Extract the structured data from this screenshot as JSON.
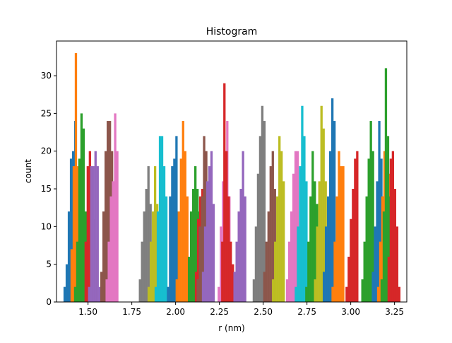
{
  "chart_data": {
    "type": "bar",
    "title": "Histogram",
    "xlabel": "r (nm)",
    "ylabel": "count",
    "xlim": [
      1.32,
      3.32
    ],
    "ylim": [
      0,
      34.6
    ],
    "xticks": [
      1.5,
      1.75,
      2.0,
      2.25,
      2.5,
      2.75,
      3.0,
      3.25
    ],
    "xtick_labels": [
      "1.50",
      "1.75",
      "2.00",
      "2.25",
      "2.50",
      "2.75",
      "3.00",
      "3.25"
    ],
    "yticks": [
      0,
      5,
      10,
      15,
      20,
      25,
      30
    ],
    "ytick_labels": [
      "0",
      "5",
      "10",
      "15",
      "20",
      "25",
      "30"
    ],
    "grid": false,
    "legend": "none",
    "series": [
      {
        "color": "#1f77b4",
        "start": 1.36,
        "width": 0.0121,
        "counts": [
          2,
          5,
          12,
          19,
          20,
          24
        ]
      },
      {
        "color": "#ff7f0e",
        "start": 1.4,
        "width": 0.0121,
        "counts": [
          7,
          18,
          33,
          18,
          13
        ]
      },
      {
        "color": "#2ca02c",
        "start": 1.42,
        "width": 0.0121,
        "counts": [
          2,
          8,
          19,
          25,
          23,
          12
        ]
      },
      {
        "color": "#d62728",
        "start": 1.48,
        "width": 0.0121,
        "counts": [
          8,
          18,
          20,
          18,
          11,
          7
        ]
      },
      {
        "color": "#9467bd",
        "start": 1.5,
        "width": 0.0121,
        "counts": [
          2,
          18,
          18,
          20,
          18,
          2
        ]
      },
      {
        "color": "#8c564b",
        "start": 1.57,
        "width": 0.0121,
        "counts": [
          4,
          12,
          20,
          24,
          24,
          20
        ]
      },
      {
        "color": "#e377c2",
        "start": 1.6,
        "width": 0.0121,
        "counts": [
          3,
          8,
          14,
          16,
          25,
          20
        ]
      },
      {
        "color": "#7f7f7f",
        "start": 1.79,
        "width": 0.0121,
        "counts": [
          3,
          8,
          12,
          15,
          18,
          13
        ]
      },
      {
        "color": "#bcbd22",
        "start": 1.84,
        "width": 0.0121,
        "counts": [
          2,
          8,
          12,
          18,
          13,
          8
        ]
      },
      {
        "color": "#17becf",
        "start": 1.88,
        "width": 0.0121,
        "counts": [
          2,
          12,
          22,
          22,
          18,
          14
        ]
      },
      {
        "color": "#1f77b4",
        "start": 1.95,
        "width": 0.0121,
        "counts": [
          2,
          14,
          18,
          19,
          22,
          12
        ]
      },
      {
        "color": "#ff7f0e",
        "start": 2.0,
        "width": 0.0121,
        "counts": [
          3,
          12,
          19,
          24,
          20,
          14
        ]
      },
      {
        "color": "#2ca02c",
        "start": 2.07,
        "width": 0.0121,
        "counts": [
          6,
          12,
          15,
          18,
          15,
          12
        ]
      },
      {
        "color": "#d62728",
        "start": 2.11,
        "width": 0.0121,
        "counts": [
          4,
          11,
          14,
          15,
          10,
          8
        ]
      },
      {
        "color": "#8c564b",
        "start": 2.12,
        "width": 0.0121,
        "counts": [
          3,
          10,
          14,
          22,
          20,
          12
        ]
      },
      {
        "color": "#9467bd",
        "start": 2.15,
        "width": 0.0121,
        "counts": [
          4,
          10,
          16,
          18,
          20,
          13
        ]
      },
      {
        "color": "#e377c2",
        "start": 2.24,
        "width": 0.0121,
        "counts": [
          2,
          10,
          16,
          20,
          24,
          14
        ]
      },
      {
        "color": "#d62728",
        "start": 2.26,
        "width": 0.0121,
        "counts": [
          8,
          29,
          20,
          14,
          8,
          5
        ]
      },
      {
        "color": "#9467bd",
        "start": 2.33,
        "width": 0.0121,
        "counts": [
          4,
          8,
          12,
          15,
          20,
          14
        ]
      },
      {
        "color": "#7f7f7f",
        "start": 2.44,
        "width": 0.0121,
        "counts": [
          3,
          10,
          17,
          22,
          26,
          24
        ]
      },
      {
        "color": "#8c564b",
        "start": 2.5,
        "width": 0.0121,
        "counts": [
          4,
          8,
          12,
          18,
          20,
          15
        ]
      },
      {
        "color": "#bcbd22",
        "start": 2.55,
        "width": 0.0121,
        "counts": [
          3,
          8,
          14,
          22,
          20,
          16
        ]
      },
      {
        "color": "#e377c2",
        "start": 2.63,
        "width": 0.0121,
        "counts": [
          3,
          8,
          12,
          17,
          20,
          20
        ]
      },
      {
        "color": "#17becf",
        "start": 2.68,
        "width": 0.0121,
        "counts": [
          2,
          10,
          18,
          26,
          22,
          16
        ]
      },
      {
        "color": "#2ca02c",
        "start": 2.74,
        "width": 0.0121,
        "counts": [
          2,
          8,
          14,
          20,
          16,
          13
        ]
      },
      {
        "color": "#bcbd22",
        "start": 2.79,
        "width": 0.0121,
        "counts": [
          3,
          10,
          16,
          26,
          23,
          16
        ]
      },
      {
        "color": "#1f77b4",
        "start": 2.84,
        "width": 0.0121,
        "counts": [
          4,
          10,
          14,
          20,
          27,
          24
        ]
      },
      {
        "color": "#ff7f0e",
        "start": 2.89,
        "width": 0.0121,
        "counts": [
          2,
          8,
          14,
          20,
          18,
          18
        ]
      },
      {
        "color": "#d62728",
        "start": 2.97,
        "width": 0.0121,
        "counts": [
          2,
          6,
          11,
          15,
          19,
          20
        ]
      },
      {
        "color": "#2ca02c",
        "start": 3.06,
        "width": 0.0121,
        "counts": [
          3,
          8,
          14,
          19,
          24,
          20
        ]
      },
      {
        "color": "#1f77b4",
        "start": 3.12,
        "width": 0.0121,
        "counts": [
          4,
          10,
          16,
          24,
          19,
          14
        ]
      },
      {
        "color": "#ff7f0e",
        "start": 3.15,
        "width": 0.0121,
        "counts": [
          2,
          8,
          14,
          20,
          22,
          17
        ]
      },
      {
        "color": "#2ca02c",
        "start": 3.17,
        "width": 0.0121,
        "counts": [
          3,
          12,
          31,
          22,
          14,
          4
        ]
      },
      {
        "color": "#d62728",
        "start": 3.21,
        "width": 0.0121,
        "counts": [
          6,
          19,
          20,
          15,
          10,
          2
        ]
      }
    ]
  }
}
